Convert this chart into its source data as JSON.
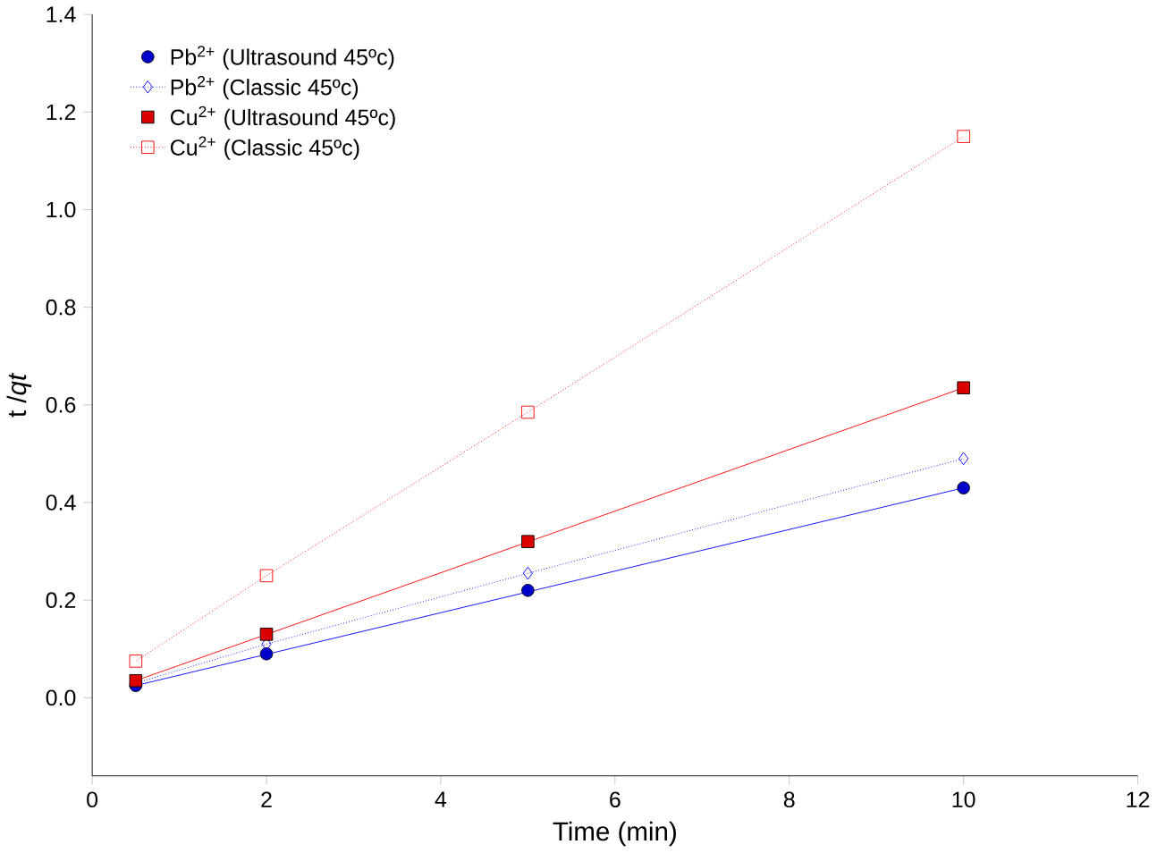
{
  "chart_data": {
    "type": "line",
    "xlabel": "Time (min)",
    "ylabel": "t /*qt*",
    "xlim": [
      0,
      12
    ],
    "ylim": [
      -0.16,
      1.4
    ],
    "xticks": [
      0,
      2,
      4,
      6,
      8,
      10,
      12
    ],
    "yticks": [
      {
        "value": 0,
        "label": "0.0"
      },
      0.2,
      0.4,
      0.6,
      0.8,
      {
        "value": 1,
        "label": "1.0"
      },
      1.2,
      1.4
    ],
    "legend": "top left",
    "grid": false,
    "series": [
      {
        "name": "Pb$^{2+}$ (Ultrasound 45ºc)",
        "type": "scatter",
        "marker": "circle",
        "color": "#0000cc",
        "x": [
          0.5,
          2,
          5,
          10
        ],
        "values": [
          0.025,
          0.09,
          0.22,
          0.43
        ]
      },
      {
        "name": "Pb$^{2+}$ (Classic 45ºc)",
        "line_style": "dotted",
        "marker": "diamond",
        "color": "#0000ff",
        "x": [
          0.5,
          2,
          5,
          10
        ],
        "values": [
          0.03,
          0.11,
          0.255,
          0.49
        ]
      },
      {
        "name": "Cu$^{2+}$ (Ultrasound 45ºc)",
        "type": "scatter",
        "marker": "square",
        "color": "#dd0000",
        "x": [
          0.5,
          2,
          5,
          10
        ],
        "values": [
          0.035,
          0.13,
          0.32,
          0.635
        ]
      },
      {
        "name": "Cu$^{2+}$ (Classic 45ºc)",
        "line_style": "dotted",
        "marker": "square",
        "color": "#ff0000",
        "x": [
          0.5,
          2,
          5,
          10
        ],
        "values": [
          0.075,
          0.25,
          0.585,
          1.15
        ]
      },
      {
        "line_style": "solid",
        "marker": "none",
        "color": "#0000ff",
        "x": [
          0.5,
          10
        ],
        "values": [
          0.025,
          0.43
        ]
      },
      {
        "line_style": "solid",
        "marker": "none",
        "color": "#ff0000",
        "x": [
          0.5,
          10
        ],
        "values": [
          0.035,
          0.635
        ]
      }
    ]
  }
}
